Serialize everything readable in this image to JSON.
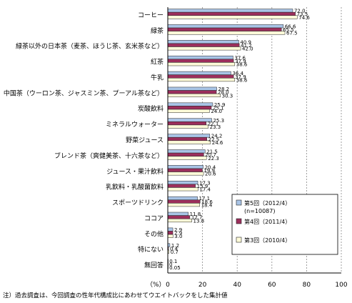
{
  "chart_data": {
    "type": "bar",
    "orientation": "horizontal",
    "xlim": [
      0,
      100
    ],
    "x_ticks": [
      0,
      20,
      40,
      60,
      80,
      100
    ],
    "xlabel": "（%）",
    "note": "注）過去調査は、今回調査の性年代構成比にあわせてウエイトバックをした集計値",
    "legend_position": "right",
    "legend_note": "(n=10087)",
    "categories": [
      "コーヒー",
      "緑茶",
      "緑茶以外の日本茶（麦茶、ほうじ茶、玄米茶など）",
      "紅茶",
      "牛乳",
      "中国茶（ウーロン茶、ジャスミン茶、プーアル茶など）",
      "炭酸飲料",
      "ミネラルウォーター",
      "野菜ジュース",
      "ブレンド茶（爽健美茶、十六茶など）",
      "ジュース・果汁飲料",
      "乳飲料・乳酸菌飲料",
      "スポーツドリンク",
      "ココア",
      "その他",
      "特にない",
      "無回答"
    ],
    "series": [
      {
        "name": "第5回（2012/4）",
        "color": "#a9c4e6",
        "values": [
          72.0,
          66.6,
          40.9,
          37.6,
          36.4,
          28.2,
          25.9,
          25.3,
          24.2,
          21.5,
          20.4,
          17.3,
          17.1,
          11.8,
          2.9,
          1.2,
          0.1
        ],
        "labels": [
          "72.0",
          "66.6",
          "40.9",
          "37.6",
          "36.4",
          "28.2",
          "25.9",
          "25.3",
          "24.2",
          "21.5",
          "20.4",
          "17.3",
          "17.1",
          "11.8",
          "2.9",
          "1.2",
          "0.1"
        ]
      },
      {
        "name": "第4回（2011/4）",
        "color": "#9c2f5c",
        "values": [
          73.5,
          65.5,
          41.2,
          37.9,
          37.9,
          28.0,
          25.1,
          22.1,
          22.5,
          20.7,
          19.9,
          15.9,
          18.6,
          12.7,
          2.9,
          0.4,
          0.0
        ],
        "labels": [
          "73.5",
          "65.5",
          "41.2",
          "37.9",
          "37.9",
          "28.0",
          "25.1",
          "22.1",
          "22.5",
          "20.7",
          "19.9",
          "15.9",
          "18.6",
          "12.7",
          "2.9",
          "0.4",
          "0"
        ]
      },
      {
        "name": "第3回（2010/4）",
        "color": "#fefbd8",
        "values": [
          74.6,
          67.5,
          42.0,
          38.6,
          38.6,
          30.3,
          24.0,
          23.3,
          24.6,
          22.3,
          20.6,
          17.4,
          18.4,
          13.8,
          3.0,
          0.7,
          0.05
        ],
        "labels": [
          "74.6",
          "67.5",
          "42.0",
          "38.6",
          "38.6",
          "30.3",
          "24.0",
          "23.3",
          "24.6",
          "22.3",
          "20.6",
          "17.4",
          "18.4",
          "13.8",
          "3.0",
          "0.7",
          "0.05"
        ]
      }
    ]
  }
}
